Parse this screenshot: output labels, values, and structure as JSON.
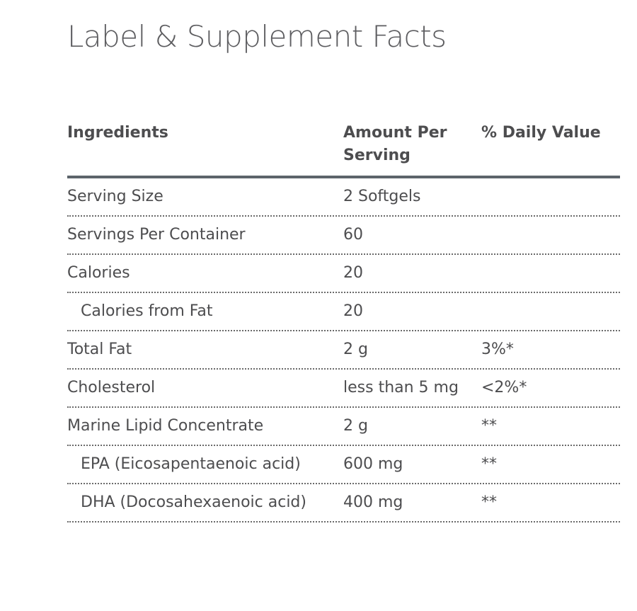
{
  "page_title": "Label & Supplement Facts",
  "table": {
    "headers": {
      "ingredients": "Ingredients",
      "amount": "Amount Per Serving",
      "daily_value": "% Daily Value"
    },
    "rows": [
      {
        "ingredient": "Serving Size",
        "amount": "2 Softgels",
        "daily_value": "",
        "indented": false
      },
      {
        "ingredient": "Servings Per Container",
        "amount": "60",
        "daily_value": "",
        "indented": false
      },
      {
        "ingredient": "Calories",
        "amount": "20",
        "daily_value": "",
        "indented": false
      },
      {
        "ingredient": "Calories from Fat",
        "amount": "20",
        "daily_value": "",
        "indented": true
      },
      {
        "ingredient": "Total Fat",
        "amount": "2 g",
        "daily_value": "3%*",
        "indented": false
      },
      {
        "ingredient": "Cholesterol",
        "amount": "less than 5 mg",
        "daily_value": "<2%*",
        "indented": false
      },
      {
        "ingredient": "Marine Lipid Concentrate",
        "amount": "2 g",
        "daily_value": "**",
        "indented": false
      },
      {
        "ingredient": "EPA (Eicosapentaenoic acid)",
        "amount": "600 mg",
        "daily_value": "**",
        "indented": true
      },
      {
        "ingredient": "DHA (Docosahexaenoic acid)",
        "amount": "400 mg",
        "daily_value": "**",
        "indented": true
      }
    ]
  }
}
